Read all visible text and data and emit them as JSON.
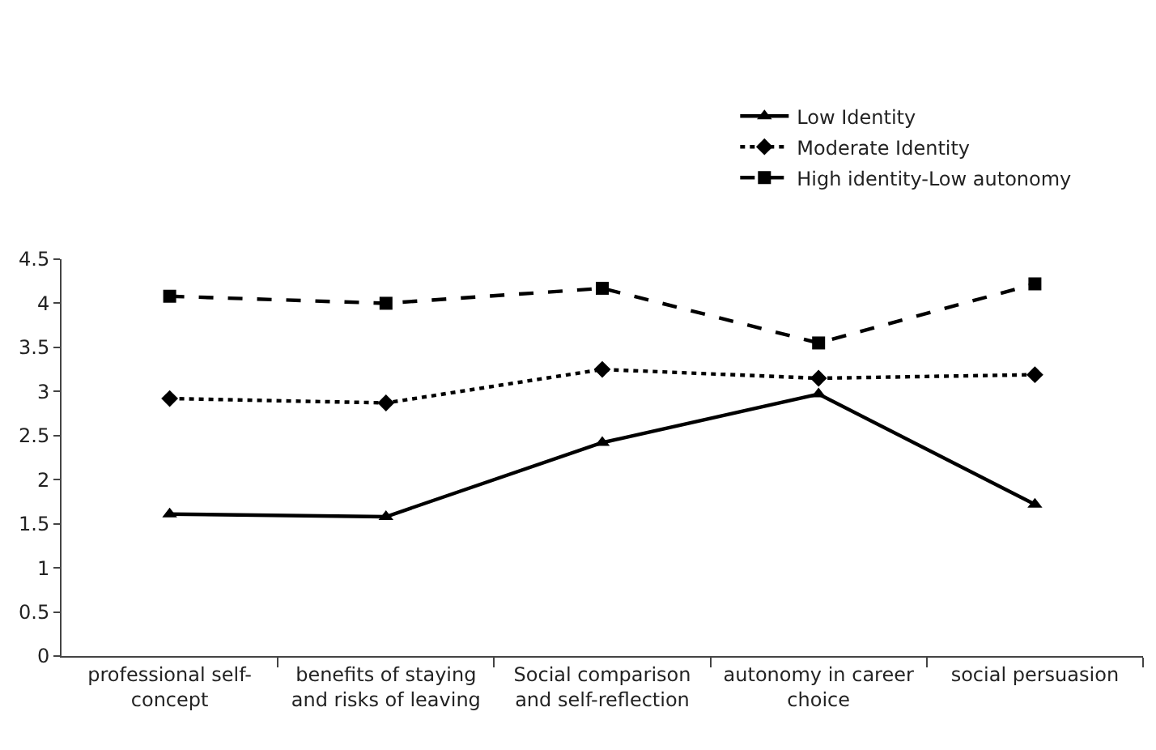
{
  "chart_data": {
    "type": "line",
    "categories": [
      "professional self-concept",
      "benefits of staying and risks of leaving",
      "Social comparison and self-reflection",
      "autonomy in career choice",
      "social persuasion"
    ],
    "series": [
      {
        "name": "Low Identity",
        "color": "#000000",
        "marker": "triangle",
        "line_style": "solid",
        "values": [
          1.61,
          1.58,
          2.42,
          2.97,
          1.72
        ]
      },
      {
        "name": "Moderate Identity",
        "color": "#000000",
        "marker": "diamond",
        "line_style": "dotted",
        "values": [
          2.92,
          2.87,
          3.25,
          3.15,
          3.19
        ]
      },
      {
        "name": "High identity-Low autonomy",
        "color": "#000000",
        "marker": "square",
        "line_style": "dashed",
        "values": [
          4.08,
          4.0,
          4.17,
          3.55,
          4.22
        ]
      }
    ],
    "ylim": [
      0,
      4.5
    ],
    "yticks": [
      0,
      0.5,
      1,
      1.5,
      2,
      2.5,
      3,
      3.5,
      4,
      4.5
    ],
    "legend": "top right"
  }
}
